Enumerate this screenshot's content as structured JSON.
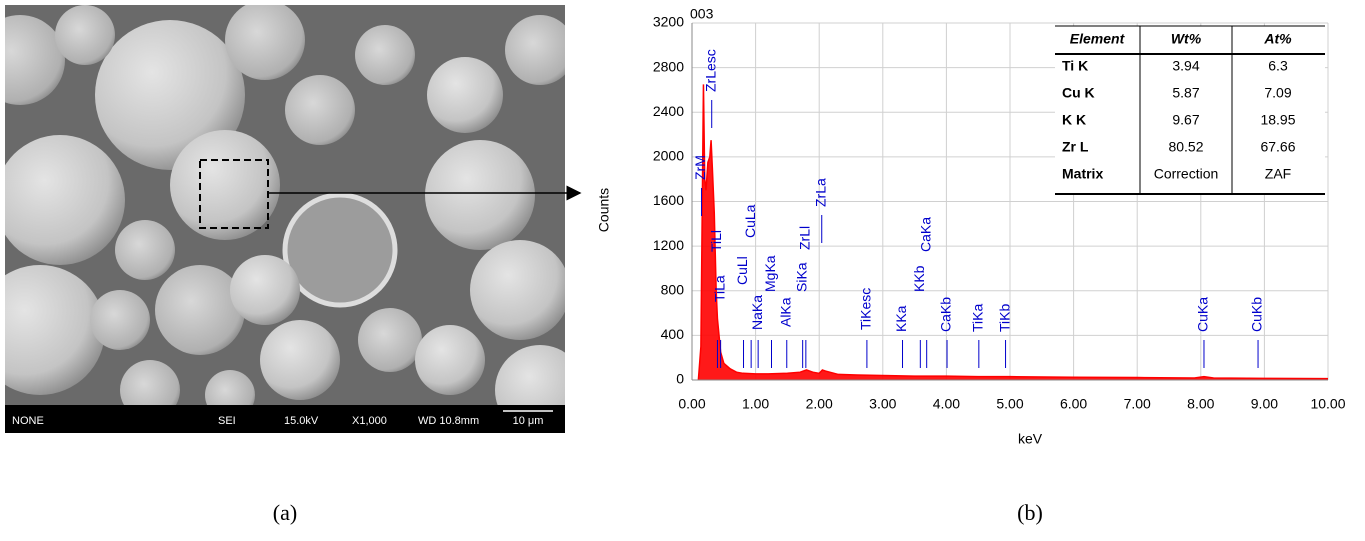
{
  "sem_image": {
    "info_bar": [
      "NONE",
      "SEI",
      "15.0kV",
      "X1,000",
      "WD 10.8mm"
    ],
    "scale_bar": "10 μm"
  },
  "chart_data": {
    "type": "area",
    "title": "003",
    "x_label": "keV",
    "y_label": "Counts",
    "x": [
      0.1,
      0.14,
      0.18,
      0.2,
      0.22,
      0.25,
      0.28,
      0.3,
      0.32,
      0.35,
      0.38,
      0.4,
      0.45,
      0.5,
      0.6,
      0.7,
      0.8,
      1.0,
      1.2,
      1.5,
      1.7,
      1.8,
      1.9,
      2.0,
      2.05,
      2.1,
      2.3,
      2.6,
      3.0,
      3.5,
      4.0,
      4.5,
      5.0,
      6.0,
      7.0,
      7.9,
      8.05,
      8.2,
      9.0,
      10.0
    ],
    "values": [
      0,
      300,
      2650,
      1800,
      1700,
      1950,
      2000,
      2150,
      1900,
      1500,
      800,
      550,
      250,
      150,
      100,
      70,
      60,
      55,
      55,
      60,
      70,
      90,
      70,
      60,
      90,
      80,
      50,
      45,
      40,
      35,
      35,
      30,
      30,
      25,
      22,
      18,
      30,
      18,
      15,
      12
    ],
    "color": "#ff0000",
    "xlim": [
      0,
      10
    ],
    "ylim": [
      0,
      3200
    ],
    "xticks": [
      {
        "value": 0,
        "label": "0.00"
      },
      {
        "value": 1,
        "label": "1.00"
      },
      {
        "value": 2,
        "label": "2.00"
      },
      {
        "value": 3,
        "label": "3.00"
      },
      {
        "value": 4,
        "label": "4.00"
      },
      {
        "value": 5,
        "label": "5.00"
      },
      {
        "value": 6,
        "label": "6.00"
      },
      {
        "value": 7,
        "label": "7.00"
      },
      {
        "value": 8,
        "label": "8.00"
      },
      {
        "value": 9,
        "label": "9.00"
      },
      {
        "value": 10,
        "label": "10.00"
      }
    ],
    "yticks": [
      0,
      400,
      800,
      1200,
      1600,
      2000,
      2400,
      2800,
      3200
    ],
    "grid": true,
    "peak_label_color": "#0000cc",
    "peak_labels": [
      {
        "label": "ZrM",
        "x": 0.15
      },
      {
        "label": "ZrLesc",
        "x": 0.31
      },
      {
        "label": "TiLl",
        "x": 0.4
      },
      {
        "label": "TiLa",
        "x": 0.45
      },
      {
        "label": "CuLl",
        "x": 0.81
      },
      {
        "label": "CuLa",
        "x": 0.93
      },
      {
        "label": "NaKa",
        "x": 1.04
      },
      {
        "label": "MgKa",
        "x": 1.25
      },
      {
        "label": "AlKa",
        "x": 1.49
      },
      {
        "label": "SiKa",
        "x": 1.74
      },
      {
        "label": "ZrLl",
        "x": 1.79
      },
      {
        "label": "ZrLa",
        "x": 2.04
      },
      {
        "label": "TiKesc",
        "x": 2.75
      },
      {
        "label": "KKa",
        "x": 3.31
      },
      {
        "label": "KKb",
        "x": 3.59
      },
      {
        "label": "CaKa",
        "x": 3.69
      },
      {
        "label": "CaKb",
        "x": 4.01
      },
      {
        "label": "TiKa",
        "x": 4.51
      },
      {
        "label": "TiKb",
        "x": 4.93
      },
      {
        "label": "CuKa",
        "x": 8.05
      },
      {
        "label": "CuKb",
        "x": 8.9
      }
    ]
  },
  "table": {
    "header": [
      "Element",
      "Wt%",
      "At%"
    ],
    "rows": [
      [
        "Ti K",
        3.94,
        6.3
      ],
      [
        "Cu K",
        5.87,
        7.09
      ],
      [
        "K K",
        9.67,
        18.95
      ],
      [
        "Zr L",
        80.52,
        67.66
      ],
      [
        "Matrix",
        "Correction",
        "ZAF"
      ]
    ]
  },
  "captions": [
    "(a)",
    "(b)"
  ]
}
